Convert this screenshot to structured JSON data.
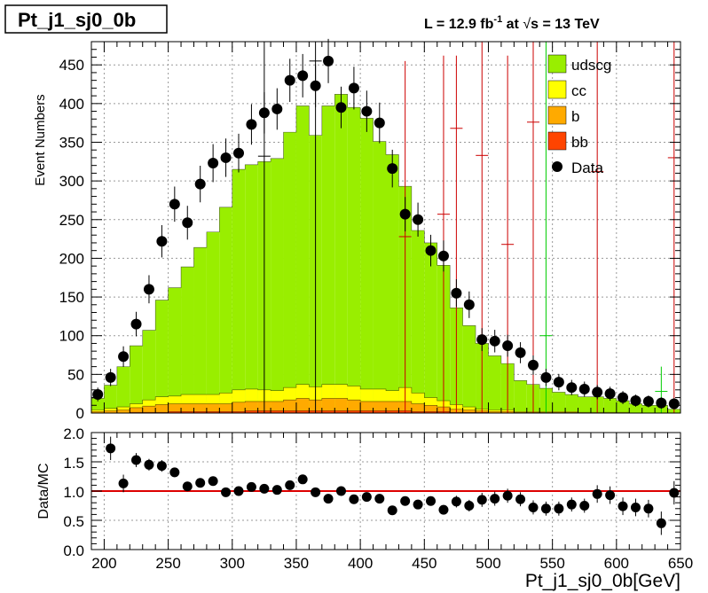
{
  "chart_data": [
    {
      "type": "bar",
      "panel": "main",
      "title": "Pt_j1_sj0_0b",
      "luminosity_text": {
        "prefix": "L = 12.9 fb",
        "exp": "-1",
        "middle": " at ",
        "sqrt_symbol": "√",
        "s": "s",
        "suffix": " = 13 TeV"
      },
      "ylabel": "Event Numbers",
      "ylim": [
        0,
        480
      ],
      "xlim": [
        190,
        650
      ],
      "grid": true,
      "legend_placement": "top-right",
      "x_ticks": [
        200,
        250,
        300,
        350,
        400,
        450,
        500,
        550,
        600,
        650
      ],
      "y_ticks": [
        0,
        50,
        100,
        150,
        200,
        250,
        300,
        350,
        400,
        450
      ],
      "bin_edges": [
        190,
        200,
        210,
        220,
        230,
        240,
        250,
        260,
        270,
        280,
        290,
        300,
        310,
        320,
        330,
        340,
        350,
        360,
        370,
        380,
        390,
        400,
        410,
        420,
        430,
        440,
        450,
        460,
        470,
        480,
        490,
        500,
        510,
        520,
        530,
        540,
        550,
        560,
        570,
        580,
        590,
        600,
        610,
        620,
        630,
        640,
        650
      ],
      "series": [
        {
          "name": "udscg",
          "color": "#99ee00",
          "values": [
            15,
            30,
            52,
            75,
            90,
            125,
            140,
            165,
            190,
            210,
            240,
            285,
            290,
            295,
            300,
            330,
            360,
            325,
            360,
            375,
            360,
            350,
            320,
            305,
            260,
            210,
            200,
            175,
            125,
            105,
            85,
            70,
            60,
            40,
            35,
            30,
            25,
            22,
            20,
            20,
            18,
            15,
            12,
            10,
            10,
            5
          ]
        },
        {
          "name": "cc",
          "color": "#ffff00",
          "values": [
            2,
            3,
            4,
            5,
            8,
            10,
            10,
            12,
            12,
            12,
            14,
            16,
            16,
            15,
            14,
            16,
            18,
            17,
            18,
            18,
            18,
            16,
            16,
            14,
            18,
            14,
            10,
            8,
            6,
            4,
            2,
            2,
            2,
            1,
            1,
            1,
            1,
            1,
            1,
            1,
            1,
            1,
            0,
            0,
            0,
            0
          ]
        },
        {
          "name": "b",
          "color": "#ffaa00",
          "values": [
            2,
            3,
            4,
            6,
            8,
            10,
            10,
            10,
            10,
            10,
            10,
            12,
            12,
            12,
            12,
            14,
            16,
            14,
            16,
            16,
            14,
            12,
            12,
            12,
            12,
            10,
            8,
            6,
            4,
            3,
            2,
            2,
            2,
            1,
            1,
            1,
            1,
            1,
            0,
            0,
            0,
            0,
            0,
            0,
            0,
            0
          ]
        },
        {
          "name": "bb",
          "color": "#ff4400",
          "values": [
            0,
            0,
            0,
            1,
            1,
            1,
            2,
            2,
            2,
            2,
            2,
            2,
            3,
            3,
            3,
            3,
            3,
            3,
            3,
            3,
            3,
            3,
            3,
            3,
            3,
            2,
            2,
            2,
            1,
            1,
            1,
            0,
            0,
            0,
            0,
            0,
            0,
            0,
            0,
            0,
            0,
            0,
            0,
            0,
            0,
            0
          ]
        }
      ],
      "data": {
        "name": "Data",
        "color": "#000000",
        "x": [
          195,
          205,
          215,
          225,
          235,
          245,
          255,
          265,
          275,
          285,
          295,
          305,
          315,
          325,
          335,
          345,
          355,
          365,
          375,
          385,
          395,
          405,
          415,
          425,
          435,
          445,
          455,
          465,
          475,
          485,
          495,
          505,
          515,
          525,
          535,
          545,
          555,
          565,
          575,
          585,
          595,
          605,
          615,
          625,
          635,
          645
        ],
        "y": [
          24,
          46,
          73,
          115,
          160,
          222,
          270,
          246,
          296,
          323,
          330,
          336,
          373,
          388,
          393,
          430,
          436,
          423,
          455,
          395,
          420,
          390,
          375,
          316,
          257,
          250,
          210,
          203,
          155,
          140,
          95,
          93,
          87,
          78,
          62,
          46,
          40,
          33,
          31,
          27,
          25,
          20,
          16,
          15,
          13,
          12
        ]
      },
      "mc_stat_errors": [
        {
          "x": 325,
          "low": 0,
          "high": 480,
          "center": 332,
          "color": "#000000"
        },
        {
          "x": 365,
          "low": 0,
          "high": 480,
          "center": 455,
          "color": "#000000"
        },
        {
          "x": 435,
          "low": 0,
          "high": 455,
          "center": 228,
          "color": "#cc0000"
        },
        {
          "x": 465,
          "low": 0,
          "high": 462,
          "center": 257,
          "color": "#cc0000"
        },
        {
          "x": 475,
          "low": 0,
          "high": 462,
          "center": 368,
          "color": "#cc0000"
        },
        {
          "x": 495,
          "low": 0,
          "high": 480,
          "center": 333,
          "color": "#cc0000"
        },
        {
          "x": 515,
          "low": 0,
          "high": 462,
          "center": 218,
          "color": "#cc0000"
        },
        {
          "x": 535,
          "low": 0,
          "high": 480,
          "center": 376,
          "color": "#cc0000"
        },
        {
          "x": 545,
          "low": 0,
          "high": 480,
          "center": 100,
          "color": "#00cc00"
        },
        {
          "x": 585,
          "low": 0,
          "high": 480,
          "center": 312,
          "color": "#cc0000"
        },
        {
          "x": 635,
          "low": 0,
          "high": 60,
          "center": 28,
          "color": "#00cc00"
        },
        {
          "x": 645,
          "low": 0,
          "high": 480,
          "center": 330,
          "color": "#cc0000"
        }
      ]
    },
    {
      "type": "scatter",
      "panel": "ratio",
      "xlabel": "Pt_j1_sj0_0b[GeV]",
      "ylabel": "Data/MC",
      "ylim": [
        0,
        2.0
      ],
      "xlim": [
        190,
        650
      ],
      "grid": true,
      "y_ticks": [
        "0.0",
        "0.5",
        "1.0",
        "1.5",
        "2.0"
      ],
      "x_ticks": [
        "200",
        "250",
        "300",
        "350",
        "400",
        "450",
        "500",
        "550",
        "600",
        "650"
      ],
      "reference_line": {
        "y": 1.0,
        "color": "#dd0000"
      },
      "x": [
        205,
        215,
        225,
        235,
        245,
        255,
        265,
        275,
        285,
        295,
        305,
        315,
        325,
        335,
        345,
        355,
        365,
        375,
        385,
        395,
        405,
        415,
        425,
        435,
        445,
        455,
        465,
        475,
        485,
        495,
        505,
        515,
        525,
        535,
        545,
        555,
        565,
        575,
        585,
        595,
        605,
        615,
        625,
        635,
        645
      ],
      "y": [
        1.73,
        1.13,
        1.53,
        1.45,
        1.43,
        1.32,
        1.08,
        1.14,
        1.17,
        0.98,
        1.0,
        1.07,
        1.04,
        1.02,
        1.1,
        1.2,
        0.98,
        0.87,
        1.0,
        0.86,
        0.9,
        0.87,
        0.67,
        0.83,
        0.77,
        0.83,
        0.68,
        0.82,
        0.75,
        0.85,
        0.87,
        0.92,
        0.86,
        0.72,
        0.7,
        0.7,
        0.77,
        0.75,
        0.95,
        0.93,
        0.74,
        0.72,
        0.7,
        0.45,
        0.97
      ],
      "err": [
        0.2,
        0.15,
        0.12,
        0.1,
        0.1,
        0.08,
        0.08,
        0.07,
        0.07,
        0.06,
        0.06,
        0.06,
        0.06,
        0.06,
        0.06,
        0.06,
        0.06,
        0.06,
        0.06,
        0.06,
        0.06,
        0.06,
        0.06,
        0.08,
        0.08,
        0.08,
        0.08,
        0.1,
        0.1,
        0.12,
        0.12,
        0.12,
        0.12,
        0.12,
        0.12,
        0.12,
        0.12,
        0.12,
        0.15,
        0.15,
        0.15,
        0.15,
        0.15,
        0.2,
        0.2
      ]
    }
  ]
}
